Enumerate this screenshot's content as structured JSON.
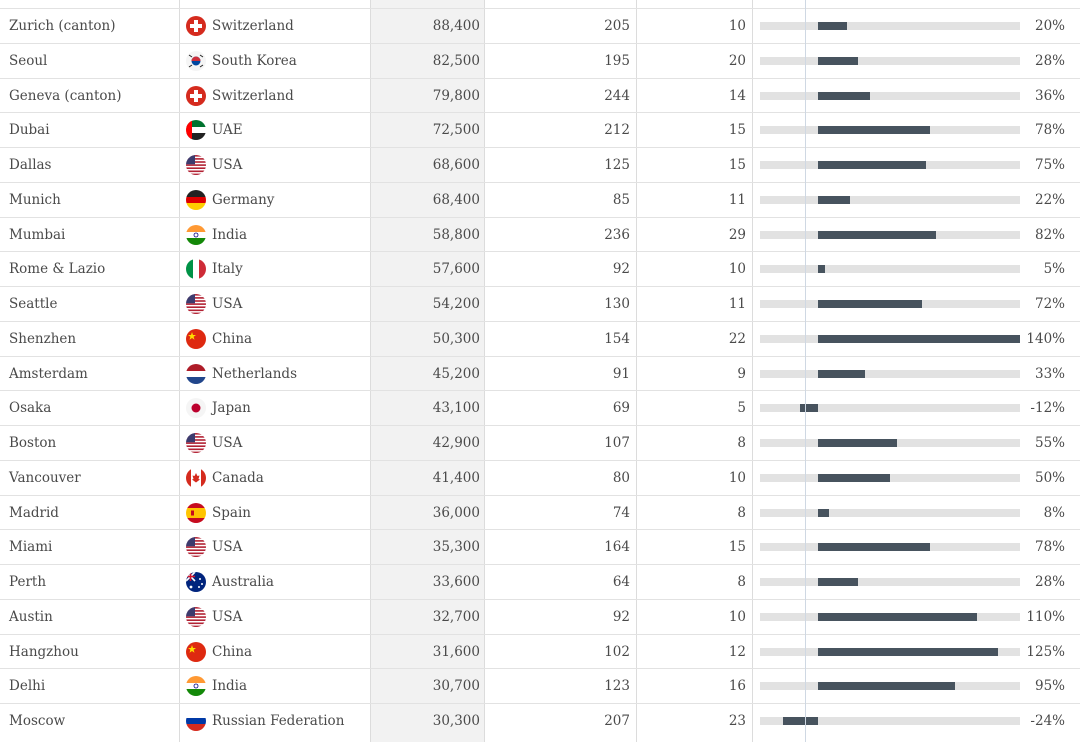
{
  "colors": {
    "bar": "#47535e",
    "track": "#e2e2e2",
    "shaded_column": "#f2f2f2"
  },
  "bar_scale": {
    "min_percent": -40,
    "max_percent": 140
  },
  "rows": [
    {
      "city": "Zurich (canton)",
      "country": "Switzerland",
      "flag": "flag-switzerland-icon",
      "col1": "88,400",
      "col2": "205",
      "col3": "10",
      "pct_value": 20,
      "pct_label": "20%"
    },
    {
      "city": "Seoul",
      "country": "South Korea",
      "flag": "flag-south-korea-icon",
      "col1": "82,500",
      "col2": "195",
      "col3": "20",
      "pct_value": 28,
      "pct_label": "28%"
    },
    {
      "city": "Geneva (canton)",
      "country": "Switzerland",
      "flag": "flag-switzerland-icon",
      "col1": "79,800",
      "col2": "244",
      "col3": "14",
      "pct_value": 36,
      "pct_label": "36%"
    },
    {
      "city": "Dubai",
      "country": "UAE",
      "flag": "flag-uae-icon",
      "col1": "72,500",
      "col2": "212",
      "col3": "15",
      "pct_value": 78,
      "pct_label": "78%"
    },
    {
      "city": "Dallas",
      "country": "USA",
      "flag": "flag-usa-icon",
      "col1": "68,600",
      "col2": "125",
      "col3": "15",
      "pct_value": 75,
      "pct_label": "75%"
    },
    {
      "city": "Munich",
      "country": "Germany",
      "flag": "flag-germany-icon",
      "col1": "68,400",
      "col2": "85",
      "col3": "11",
      "pct_value": 22,
      "pct_label": "22%"
    },
    {
      "city": "Mumbai",
      "country": "India",
      "flag": "flag-india-icon",
      "col1": "58,800",
      "col2": "236",
      "col3": "29",
      "pct_value": 82,
      "pct_label": "82%"
    },
    {
      "city": "Rome & Lazio",
      "country": "Italy",
      "flag": "flag-italy-icon",
      "col1": "57,600",
      "col2": "92",
      "col3": "10",
      "pct_value": 5,
      "pct_label": "5%"
    },
    {
      "city": "Seattle",
      "country": "USA",
      "flag": "flag-usa-icon",
      "col1": "54,200",
      "col2": "130",
      "col3": "11",
      "pct_value": 72,
      "pct_label": "72%"
    },
    {
      "city": "Shenzhen",
      "country": "China",
      "flag": "flag-china-icon",
      "col1": "50,300",
      "col2": "154",
      "col3": "22",
      "pct_value": 140,
      "pct_label": "140%"
    },
    {
      "city": "Amsterdam",
      "country": "Netherlands",
      "flag": "flag-netherlands-icon",
      "col1": "45,200",
      "col2": "91",
      "col3": "9",
      "pct_value": 33,
      "pct_label": "33%"
    },
    {
      "city": "Osaka",
      "country": "Japan",
      "flag": "flag-japan-icon",
      "col1": "43,100",
      "col2": "69",
      "col3": "5",
      "pct_value": -12,
      "pct_label": "-12%"
    },
    {
      "city": "Boston",
      "country": "USA",
      "flag": "flag-usa-icon",
      "col1": "42,900",
      "col2": "107",
      "col3": "8",
      "pct_value": 55,
      "pct_label": "55%"
    },
    {
      "city": "Vancouver",
      "country": "Canada",
      "flag": "flag-canada-icon",
      "col1": "41,400",
      "col2": "80",
      "col3": "10",
      "pct_value": 50,
      "pct_label": "50%"
    },
    {
      "city": "Madrid",
      "country": "Spain",
      "flag": "flag-spain-icon",
      "col1": "36,000",
      "col2": "74",
      "col3": "8",
      "pct_value": 8,
      "pct_label": "8%"
    },
    {
      "city": "Miami",
      "country": "USA",
      "flag": "flag-usa-icon",
      "col1": "35,300",
      "col2": "164",
      "col3": "15",
      "pct_value": 78,
      "pct_label": "78%"
    },
    {
      "city": "Perth",
      "country": "Australia",
      "flag": "flag-australia-icon",
      "col1": "33,600",
      "col2": "64",
      "col3": "8",
      "pct_value": 28,
      "pct_label": "28%"
    },
    {
      "city": "Austin",
      "country": "USA",
      "flag": "flag-usa-icon",
      "col1": "32,700",
      "col2": "92",
      "col3": "10",
      "pct_value": 110,
      "pct_label": "110%"
    },
    {
      "city": "Hangzhou",
      "country": "China",
      "flag": "flag-china-icon",
      "col1": "31,600",
      "col2": "102",
      "col3": "12",
      "pct_value": 125,
      "pct_label": "125%"
    },
    {
      "city": "Delhi",
      "country": "India",
      "flag": "flag-india-icon",
      "col1": "30,700",
      "col2": "123",
      "col3": "16",
      "pct_value": 95,
      "pct_label": "95%"
    },
    {
      "city": "Moscow",
      "country": "Russian Federation",
      "flag": "flag-russia-icon",
      "col1": "30,300",
      "col2": "207",
      "col3": "23",
      "pct_value": -24,
      "pct_label": "-24%"
    }
  ]
}
